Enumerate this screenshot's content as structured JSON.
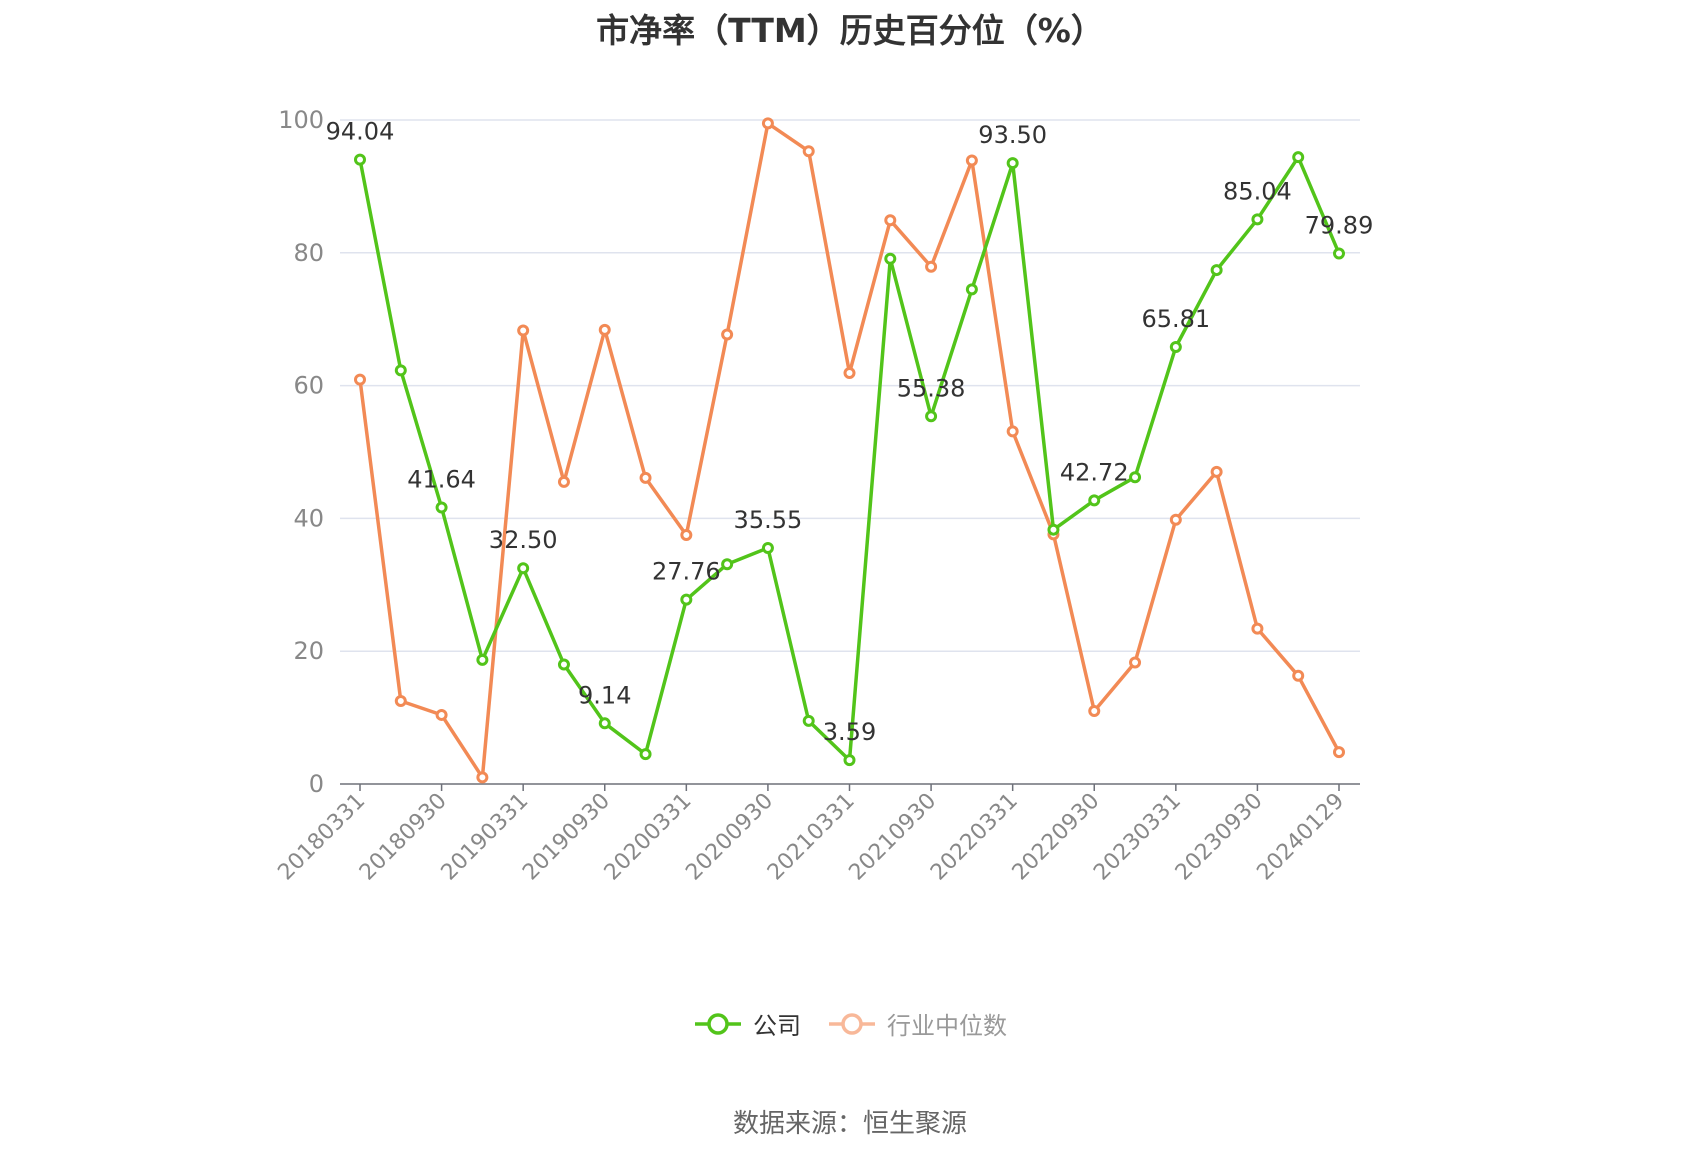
{
  "chart_data": {
    "type": "line",
    "title": "市净率（TTM）历史百分位（%）",
    "ylim": [
      0,
      100
    ],
    "yticks": [
      0,
      20,
      40,
      60,
      80,
      100
    ],
    "x": [
      "20180331",
      "20180630",
      "20180930",
      "20181231",
      "20190331",
      "20190630",
      "20190930",
      "20191231",
      "20200331",
      "20200630",
      "20200930",
      "20201231",
      "20210331",
      "20210630",
      "20210930",
      "20211231",
      "20220331",
      "20220630",
      "20220930",
      "20221231",
      "20230331",
      "20230630",
      "20230930",
      "20231231",
      "20240129"
    ],
    "xtick_labels": [
      "20180331",
      "20180930",
      "20190331",
      "20190930",
      "20200331",
      "20200930",
      "20210331",
      "20210930",
      "20220331",
      "20220930",
      "20230331",
      "20230930",
      "20240129"
    ],
    "grid": true,
    "legend_position": "bottom",
    "series": [
      {
        "name": "公司",
        "color": "#52c41a",
        "values": [
          94.04,
          62.3,
          41.64,
          18.7,
          32.5,
          18.0,
          9.14,
          4.5,
          27.76,
          33.1,
          35.55,
          9.5,
          3.59,
          79.1,
          55.38,
          74.5,
          93.5,
          38.3,
          42.72,
          46.2,
          65.81,
          77.4,
          85.04,
          94.4,
          79.89
        ],
        "data_labels": [
          {
            "index": 0,
            "text": "94.04"
          },
          {
            "index": 2,
            "text": "41.64"
          },
          {
            "index": 4,
            "text": "32.50"
          },
          {
            "index": 6,
            "text": "9.14"
          },
          {
            "index": 8,
            "text": "27.76"
          },
          {
            "index": 10,
            "text": "35.55"
          },
          {
            "index": 12,
            "text": "3.59"
          },
          {
            "index": 14,
            "text": "55.38"
          },
          {
            "index": 16,
            "text": "93.50"
          },
          {
            "index": 18,
            "text": "42.72"
          },
          {
            "index": 20,
            "text": "65.81"
          },
          {
            "index": 22,
            "text": "85.04"
          },
          {
            "index": 24,
            "text": "79.89"
          }
        ]
      },
      {
        "name": "行业中位数",
        "color": "#f28a55",
        "values": [
          60.9,
          12.5,
          10.4,
          1.0,
          68.3,
          45.5,
          68.4,
          46.1,
          37.5,
          67.7,
          99.5,
          95.3,
          61.9,
          84.9,
          77.9,
          93.9,
          53.1,
          37.6,
          11.0,
          18.3,
          39.8,
          47.0,
          23.4,
          16.3,
          4.8
        ],
        "data_labels": []
      }
    ]
  },
  "legend": {
    "company_label": "公司",
    "industry_label": "行业中位数"
  },
  "source_note": "数据来源：恒生聚源"
}
